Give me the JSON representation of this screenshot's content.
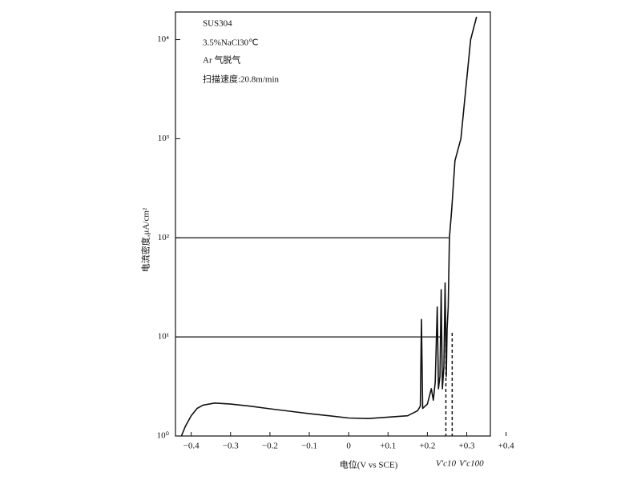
{
  "chart_data": {
    "type": "line",
    "ylabel": "电流密度,μA/cm²",
    "xlabel": "电位(V vs SCE)",
    "annotations": [
      "SUS304",
      "3.5%NaCl30℃",
      "Ar 气脱气",
      "扫描速度:20.8m/min"
    ],
    "log_y": true,
    "xlim": [
      -0.44,
      0.36
    ],
    "ylim": [
      1,
      19000
    ],
    "xticks": [
      {
        "value": -0.4,
        "label": "−0.4"
      },
      {
        "value": -0.3,
        "label": "−0.3"
      },
      {
        "value": -0.2,
        "label": "−0.2"
      },
      {
        "value": -0.1,
        "label": "−0.1"
      },
      0,
      {
        "value": 0.1,
        "label": "+0.1"
      },
      {
        "value": 0.2,
        "label": "+0.2"
      },
      {
        "value": 0.3,
        "label": "+0.3"
      },
      {
        "value": 0.4,
        "label": "+0.4"
      }
    ],
    "yticks": [
      {
        "value": 1,
        "label": "10⁰"
      },
      {
        "value": 10,
        "label": "10¹"
      },
      {
        "value": 100,
        "label": "10²"
      },
      {
        "value": 1000,
        "label": "10³"
      },
      {
        "value": 10000,
        "label": "10⁴"
      }
    ],
    "series": [
      {
        "color": "#111111",
        "x": [
          -0.425,
          -0.415,
          -0.4,
          -0.385,
          -0.37,
          -0.34,
          -0.3,
          -0.25,
          -0.2,
          -0.15,
          -0.1,
          -0.05,
          0,
          0.05,
          0.1,
          0.15,
          0.175,
          0.182,
          0.185,
          0.188,
          0.2,
          0.21,
          0.215,
          0.22,
          0.225,
          0.228,
          0.232,
          0.235,
          0.238,
          0.242,
          0.245,
          0.248,
          0.25,
          0.253,
          0.256,
          0.262,
          0.27,
          0.285,
          0.31,
          0.325
        ],
        "values": [
          1.0,
          1.25,
          1.6,
          1.9,
          2.05,
          2.15,
          2.1,
          2.0,
          1.88,
          1.78,
          1.68,
          1.6,
          1.52,
          1.5,
          1.55,
          1.6,
          1.8,
          2.0,
          15,
          1.9,
          2.1,
          3.0,
          2.3,
          3.5,
          20,
          3.0,
          4.0,
          30,
          3.0,
          5.0,
          35,
          4.0,
          12,
          20,
          100,
          200,
          600,
          1000,
          10000,
          17000
        ]
      }
    ],
    "hlines": [
      {
        "y": 10,
        "x_end": 0.232
      },
      {
        "y": 100,
        "x_end": 0.254
      }
    ],
    "vlines": [
      {
        "x": 0.247,
        "y_top": 11,
        "label": "V′c10"
      },
      {
        "x": 0.263,
        "y_top": 11,
        "label": "V′c100"
      }
    ]
  }
}
